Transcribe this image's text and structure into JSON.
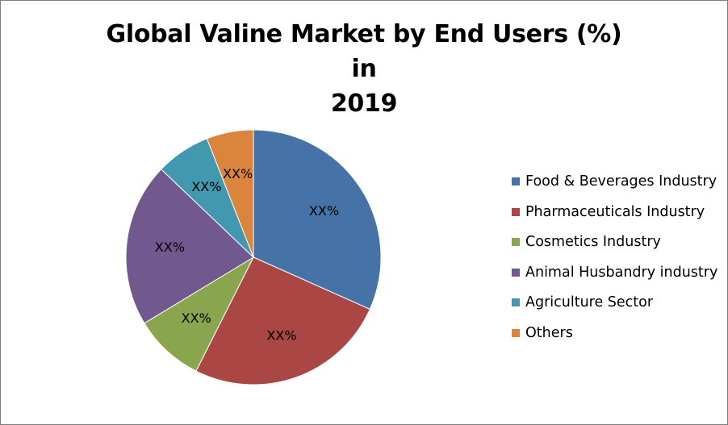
{
  "chart_data": {
    "type": "pie",
    "title": "Global Valine Market by End Users (%) in 2019",
    "title_lines": [
      "Global Valine Market by End Users (%) in",
      "2019"
    ],
    "categories": [
      "Food & Beverages Industry",
      "Pharmaceuticals Industry",
      "Cosmetics Industry",
      "Animal Husbandry industry",
      "Agriculture Sector",
      "Others"
    ],
    "values": [
      32,
      26,
      9,
      21,
      7,
      6
    ],
    "data_labels": [
      "XX%",
      "XX%",
      "XX%",
      "XX%",
      "XX%",
      "XX%"
    ],
    "colors": [
      "#4572A7",
      "#AA4643",
      "#89A54E",
      "#71588F",
      "#4198AF",
      "#DB843D"
    ],
    "legend_position": "right",
    "start_angle": "12 o'clock",
    "direction": "clockwise"
  }
}
